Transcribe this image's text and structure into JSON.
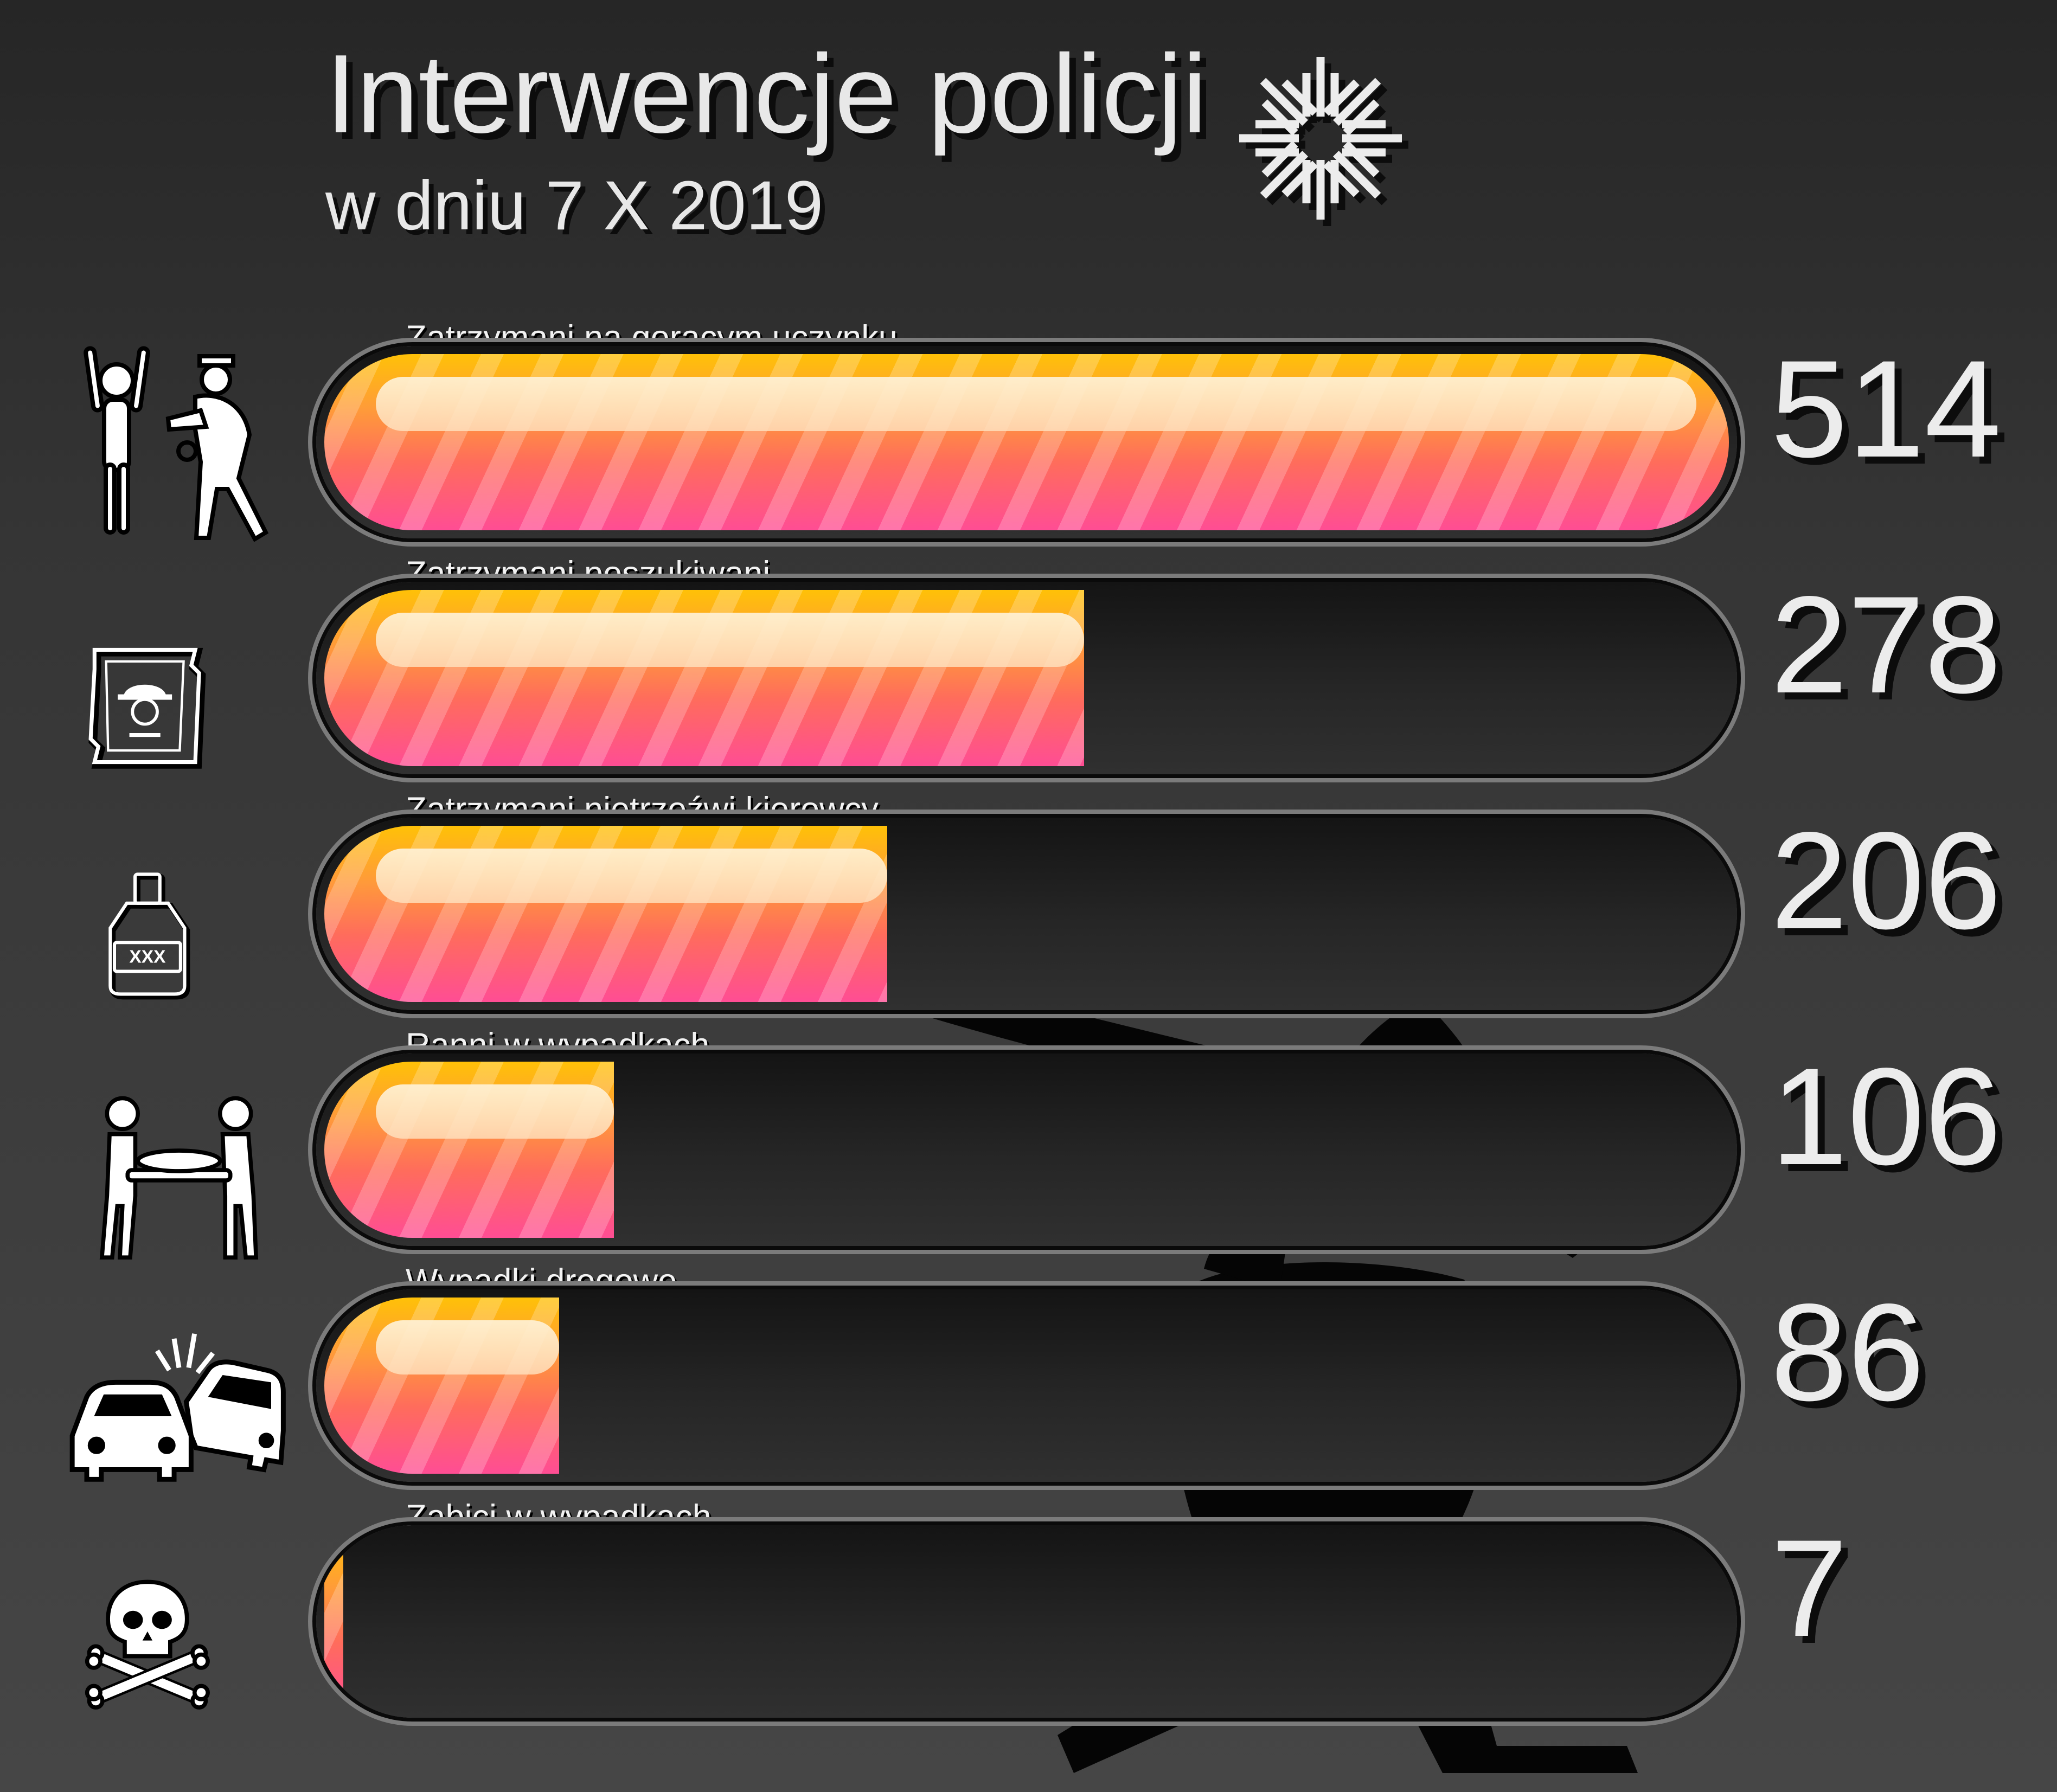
{
  "title": "Interwencje policji",
  "subtitle": "w dniu 7 X 2019",
  "colors": {
    "background": "#353535",
    "text": "#e8e8e8",
    "bar_top": "#ffc107",
    "bar_mid": "#ff6c5c",
    "bar_bottom": "#ff4d94"
  },
  "chart_data": {
    "type": "bar",
    "orientation": "horizontal",
    "title": "Interwencje policji",
    "subtitle": "w dniu 7 X 2019",
    "categories": [
      "Zatrzymani na gorącym uczynku",
      "Zatrzymani poszukiwani",
      "Zatrzymani nietrzeźwi kierowcy",
      "Ranni w wypadkach",
      "Wypadki drogowe",
      "Zabici w wypadkach"
    ],
    "values": [
      514,
      278,
      206,
      106,
      86,
      7
    ],
    "icons": [
      "arrest-icon",
      "wanted-poster-icon",
      "alcohol-bottle-icon",
      "stretcher-icon",
      "car-crash-icon",
      "skull-crossbones-icon"
    ],
    "value_labels": [
      "514",
      "278",
      "206",
      "106",
      "86",
      "7"
    ],
    "xlim": [
      0,
      514
    ],
    "grid": false,
    "legend": "none"
  }
}
